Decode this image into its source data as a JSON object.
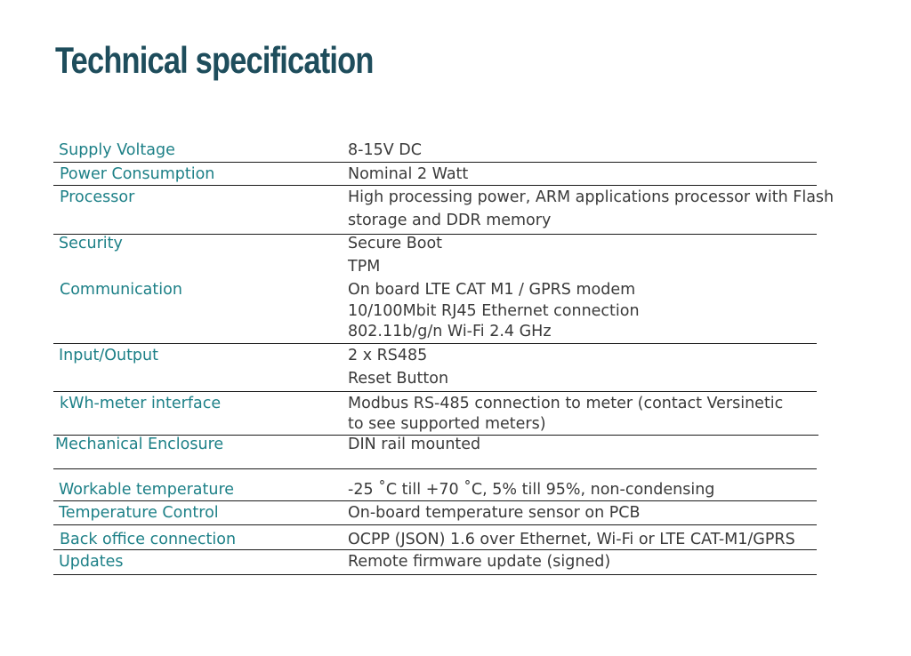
{
  "title": "Technical specification",
  "specs": {
    "supply_voltage": {
      "label": "Supply Voltage",
      "values": [
        "8-15V DC"
      ]
    },
    "power_consumption": {
      "label": "Power Consumption",
      "values": [
        "Nominal 2 Watt"
      ]
    },
    "processor": {
      "label": "Processor",
      "values": [
        "High processing power, ARM applications processor with Flash",
        "storage and DDR memory"
      ]
    },
    "security": {
      "label": "Security",
      "values": [
        "Secure Boot",
        "TPM"
      ]
    },
    "communication": {
      "label": "Communication",
      "values": [
        "On board LTE CAT M1 / GPRS modem",
        "10/100Mbit RJ45 Ethernet connection",
        "802.11b/g/n Wi-Fi 2.4 GHz"
      ]
    },
    "input_output": {
      "label": "Input/Output",
      "values": [
        "2 x RS485",
        "Reset Button"
      ]
    },
    "kwh_meter": {
      "label": "kWh-meter interface",
      "values": [
        "Modbus RS-485 connection to meter (contact Versinetic",
        "to see supported meters)"
      ]
    },
    "enclosure": {
      "label": "Mechanical Enclosure",
      "values": [
        "DIN rail mounted"
      ]
    },
    "temperature": {
      "label": "Workable temperature",
      "values": [
        "-25 ˚C till +70 ˚C, 5% till 95%, non-condensing"
      ]
    },
    "temp_control": {
      "label": "Temperature Control",
      "values": [
        "On-board temperature sensor on PCB"
      ]
    },
    "backoffice": {
      "label": "Back office connection",
      "values": [
        "OCPP (JSON) 1.6 over Ethernet, Wi-Fi or LTE CAT-M1/GPRS"
      ]
    },
    "updates": {
      "label": "Updates",
      "values": [
        "Remote firmware update (signed)"
      ]
    }
  }
}
